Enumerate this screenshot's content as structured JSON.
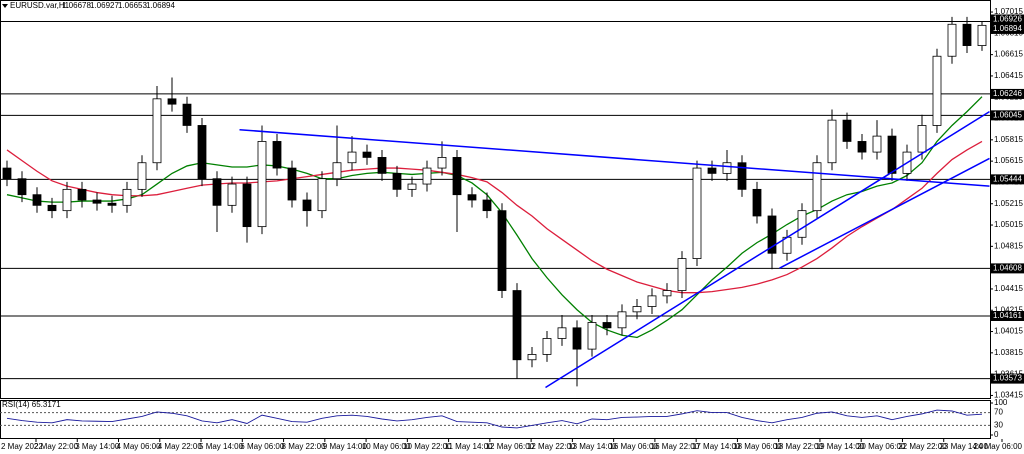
{
  "header": {
    "symbol": "EURUSD.var,H1",
    "open": 1.06678,
    "high": 1.06927,
    "low": 1.06653,
    "close": 1.06894
  },
  "chart_data": {
    "type": "candlestick",
    "ylim": [
      1.03391,
      1.07128
    ],
    "yticks": [
      1.03415,
      1.03615,
      1.03815,
      1.04015,
      1.04215,
      1.04415,
      1.04615,
      1.04815,
      1.05015,
      1.05215,
      1.05415,
      1.05615,
      1.05815,
      1.06015,
      1.06215,
      1.06415,
      1.06615,
      1.06815,
      1.07015
    ],
    "x_labels": [
      "2 May 2022",
      "2 May 22:00",
      "3 May 14:00",
      "4 May 06:00",
      "4 May 22:00",
      "5 May 14:00",
      "6 May 06:00",
      "8 May 22:00",
      "9 May 14:00",
      "10 May 06:00",
      "10 May 22:00",
      "11 May 14:00",
      "12 May 06:00",
      "12 May 22:00",
      "13 May 14:00",
      "16 May 06:00",
      "16 May 22:00",
      "17 May 14:00",
      "18 May 06:00",
      "18 May 22:00",
      "19 May 14:00",
      "20 May 06:00",
      "22 May 22:00",
      "23 May 14:00",
      "24 May 06:00"
    ],
    "candle_colors": {
      "up": "#ffffff",
      "down": "#000000"
    },
    "open": [
      1.0555,
      1.0545,
      1.053,
      1.052,
      1.0515,
      1.0535,
      1.0525,
      1.0522,
      1.052,
      1.0535,
      1.056,
      1.062,
      1.0615,
      1.0595,
      1.0545,
      1.052,
      1.054,
      1.05,
      1.058,
      1.0555,
      1.0525,
      1.0515,
      1.0545,
      1.056,
      1.057,
      1.0565,
      1.055,
      1.0535,
      1.054,
      1.0555,
      1.0565,
      1.053,
      1.0525,
      1.0515,
      1.044,
      1.0375,
      1.038,
      1.0395,
      1.0405,
      1.0385,
      1.041,
      1.0405,
      1.042,
      1.0425,
      1.0435,
      1.044,
      1.047,
      1.0555,
      1.055,
      1.056,
      1.0535,
      1.051,
      1.0475,
      1.049,
      1.0515,
      1.056,
      1.06,
      1.058,
      1.057,
      1.0585,
      1.055,
      1.057,
      1.0595,
      1.066,
      1.069,
      1.067
    ],
    "high": [
      1.0562,
      1.0552,
      1.0537,
      1.0527,
      1.0542,
      1.0542,
      1.0532,
      1.0529,
      1.0542,
      1.0567,
      1.0632,
      1.064,
      1.0622,
      1.0602,
      1.0552,
      1.0547,
      1.0547,
      1.0595,
      1.0587,
      1.0562,
      1.0532,
      1.0552,
      1.0595,
      1.0585,
      1.0577,
      1.0572,
      1.0557,
      1.0547,
      1.0562,
      1.058,
      1.0572,
      1.0537,
      1.0532,
      1.0522,
      1.0447,
      1.0387,
      1.0402,
      1.0417,
      1.0412,
      1.0417,
      1.0417,
      1.0427,
      1.0432,
      1.0442,
      1.0447,
      1.0477,
      1.0562,
      1.0562,
      1.0572,
      1.0567,
      1.0542,
      1.0517,
      1.0497,
      1.0522,
      1.0567,
      1.061,
      1.0607,
      1.0587,
      1.06,
      1.0592,
      1.0577,
      1.0605,
      1.0667,
      1.0697,
      1.0697,
      1.0693
    ],
    "low": [
      1.0538,
      1.0523,
      1.0513,
      1.0508,
      1.0508,
      1.0518,
      1.0515,
      1.0513,
      1.0513,
      1.0528,
      1.0553,
      1.0608,
      1.0588,
      1.0538,
      1.0495,
      1.0513,
      1.0485,
      1.0493,
      1.0548,
      1.0518,
      1.05,
      1.0508,
      1.0538,
      1.0553,
      1.0558,
      1.0543,
      1.0528,
      1.0528,
      1.0533,
      1.0548,
      1.0495,
      1.0518,
      1.0508,
      1.0433,
      1.0357,
      1.0368,
      1.0373,
      1.0388,
      1.035,
      1.0378,
      1.0398,
      1.0398,
      1.0413,
      1.0418,
      1.0428,
      1.0433,
      1.0463,
      1.0543,
      1.0543,
      1.0528,
      1.0503,
      1.046,
      1.0468,
      1.0483,
      1.0508,
      1.0553,
      1.0573,
      1.0563,
      1.0563,
      1.0543,
      1.0543,
      1.0563,
      1.0588,
      1.0653,
      1.0663,
      1.0665
    ],
    "close": [
      1.0545,
      1.053,
      1.052,
      1.0515,
      1.0535,
      1.0525,
      1.0522,
      1.052,
      1.0535,
      1.056,
      1.062,
      1.0615,
      1.0595,
      1.0545,
      1.052,
      1.054,
      1.05,
      1.058,
      1.0555,
      1.0525,
      1.0515,
      1.0545,
      1.056,
      1.057,
      1.0565,
      1.055,
      1.0535,
      1.054,
      1.0555,
      1.0565,
      1.053,
      1.0525,
      1.0515,
      1.044,
      1.0375,
      1.038,
      1.0395,
      1.0405,
      1.0385,
      1.041,
      1.0405,
      1.042,
      1.0425,
      1.0435,
      1.044,
      1.047,
      1.0555,
      1.055,
      1.056,
      1.0535,
      1.051,
      1.0475,
      1.049,
      1.0515,
      1.056,
      1.06,
      1.058,
      1.057,
      1.0585,
      1.055,
      1.057,
      1.0595,
      1.066,
      1.069,
      1.067,
      1.0689
    ],
    "moving_averages": [
      {
        "color": "#008000",
        "values": [
          1.053,
          1.0527,
          1.0524,
          1.0523,
          1.0523,
          1.0524,
          1.0524,
          1.0524,
          1.0526,
          1.053,
          1.054,
          1.055,
          1.0557,
          1.056,
          1.0558,
          1.0556,
          1.0556,
          1.0558,
          1.0557,
          1.0554,
          1.055,
          1.0545,
          1.0545,
          1.0548,
          1.055,
          1.0551,
          1.055,
          1.0549,
          1.055,
          1.0551,
          1.0548,
          1.0541,
          1.053,
          1.0513,
          1.0492,
          1.047,
          1.0452,
          1.0436,
          1.0422,
          1.041,
          1.0403,
          1.0398,
          1.0396,
          1.0403,
          1.0412,
          1.0422,
          1.0436,
          1.045,
          1.0462,
          1.0475,
          1.0485,
          1.0493,
          1.0502,
          1.051,
          1.0516,
          1.0524,
          1.053,
          1.0533,
          1.0538,
          1.0541,
          1.0548,
          1.056,
          1.058,
          1.0595,
          1.0608,
          1.0622
        ]
      },
      {
        "color": "#dc1e3c",
        "values": [
          1.0572,
          1.0562,
          1.0552,
          1.0543,
          1.0538,
          1.0535,
          1.0532,
          1.053,
          1.0529,
          1.0529,
          1.053,
          1.0533,
          1.0536,
          1.0539,
          1.054,
          1.0541,
          1.0541,
          1.0542,
          1.0543,
          1.0545,
          1.0547,
          1.0549,
          1.0551,
          1.0553,
          1.0554,
          1.0555,
          1.0555,
          1.0554,
          1.0553,
          1.0551,
          1.0549,
          1.0546,
          1.0542,
          1.0532,
          1.052,
          1.051,
          1.0498,
          1.0488,
          1.0478,
          1.0468,
          1.046,
          1.0454,
          1.0448,
          1.0444,
          1.044,
          1.0438,
          1.0438,
          1.0439,
          1.0441,
          1.0443,
          1.0446,
          1.045,
          1.0455,
          1.0462,
          1.047,
          1.048,
          1.0491,
          1.05,
          1.0508,
          1.0516,
          1.0526,
          1.0536,
          1.055,
          1.0563,
          1.0572,
          1.058
        ]
      }
    ],
    "trendlines": [
      {
        "color": "#0000ff",
        "x": [
          15.5,
          65.5
        ],
        "y": [
          1.0591,
          1.0538
        ]
      },
      {
        "color": "#0000ff",
        "x": [
          35.9,
          65.5
        ],
        "y": [
          1.0349,
          1.0608
        ]
      },
      {
        "color": "#0000ff",
        "x": [
          51.5,
          65.5
        ],
        "y": [
          1.0461,
          1.0564
        ]
      }
    ],
    "price_line": 1.06926,
    "levels": [
      1.06246,
      1.06045,
      1.05444,
      1.04608,
      1.04161,
      1.03573
    ],
    "rsi": {
      "label": "RSI(14) 65.3171",
      "color": "#1a1a9c",
      "ylim": [
        0,
        100
      ],
      "yticks": [
        0,
        30,
        70,
        100
      ],
      "values": [
        52,
        45,
        40,
        38,
        48,
        44,
        43,
        42,
        50,
        58,
        72,
        68,
        60,
        44,
        38,
        48,
        36,
        62,
        52,
        42,
        40,
        52,
        60,
        62,
        58,
        50,
        44,
        48,
        55,
        60,
        42,
        40,
        38,
        25,
        22,
        30,
        38,
        45,
        35,
        50,
        48,
        55,
        56,
        58,
        58,
        66,
        76,
        70,
        70,
        55,
        45,
        38,
        48,
        55,
        68,
        72,
        60,
        55,
        60,
        48,
        58,
        66,
        78,
        75,
        62,
        65
      ]
    }
  }
}
